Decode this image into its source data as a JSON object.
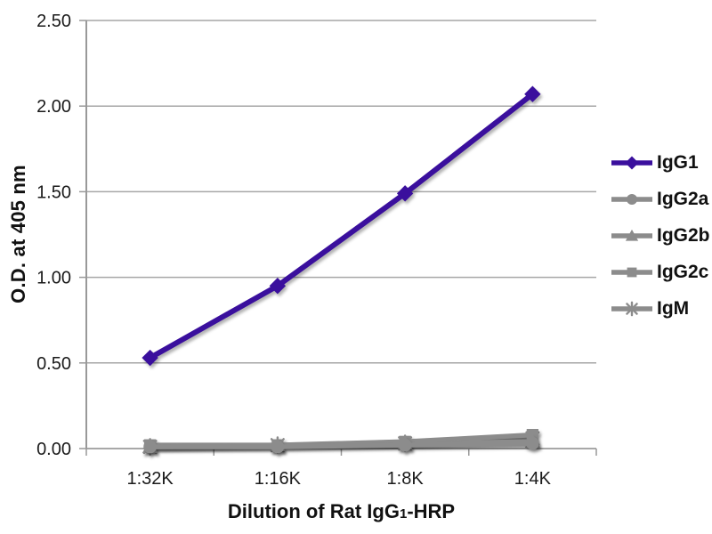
{
  "chart_data": {
    "type": "line",
    "title": "",
    "ylabel": "O.D. at 405 nm",
    "xlabel_parts": {
      "prefix": "Dilution of Rat IgG",
      "sub": "1",
      "suffix": "-HRP"
    },
    "categories": [
      "1:32K",
      "1:16K",
      "1:8K",
      "1:4K"
    ],
    "yticks": [
      "0.00",
      "0.50",
      "1.00",
      "1.50",
      "2.00",
      "2.50"
    ],
    "ylim": [
      0,
      2.5
    ],
    "grid": true,
    "legend_position": "right",
    "series": [
      {
        "name": "IgG1",
        "marker": "diamond",
        "color": "#3A0F9D",
        "values": [
          0.53,
          0.95,
          1.49,
          2.07
        ]
      },
      {
        "name": "IgG2a",
        "marker": "circle",
        "color": "#8C8C8C",
        "values": [
          0.01,
          0.01,
          0.02,
          0.03
        ]
      },
      {
        "name": "IgG2b",
        "marker": "triangle",
        "color": "#8C8C8C",
        "values": [
          0.01,
          0.02,
          0.03,
          0.04
        ]
      },
      {
        "name": "IgG2c",
        "marker": "square",
        "color": "#8C8C8C",
        "values": [
          0.02,
          0.02,
          0.04,
          0.08
        ]
      },
      {
        "name": "IgM",
        "marker": "asterisk",
        "color": "#8C8C8C",
        "values": [
          0.01,
          0.02,
          0.03,
          0.06
        ]
      }
    ]
  }
}
